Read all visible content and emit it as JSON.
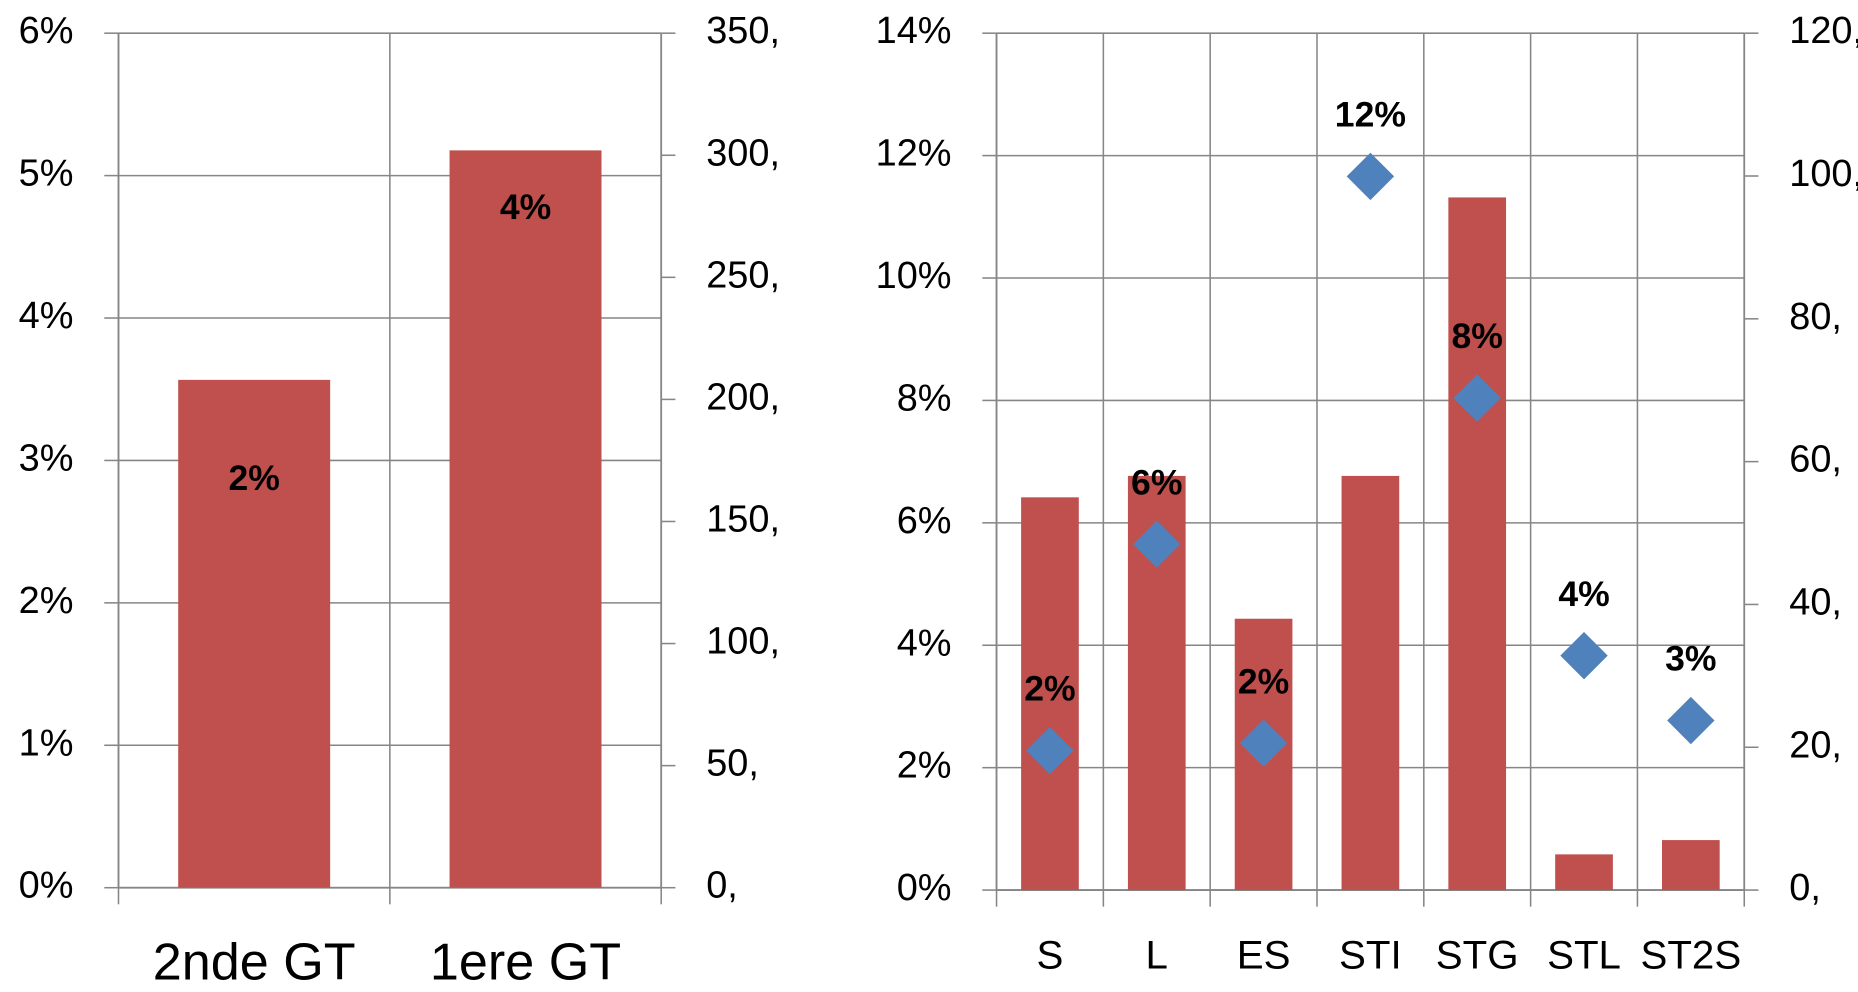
{
  "chart_data": [
    {
      "type": "bar",
      "categories": [
        "2nde GT",
        "1ere GT"
      ],
      "series": [
        {
          "color": "#c0504d",
          "axis": "y2",
          "values": [
            208,
            302
          ]
        },
        {
          "color": "none",
          "marker": "none",
          "values": [
            2,
            4
          ],
          "value_labels": [
            "2%",
            "4%"
          ]
        }
      ],
      "ylim": [
        0,
        6
      ],
      "yticks": [
        {
          "value": 0,
          "label": "0%"
        },
        {
          "value": 1,
          "label": "1%"
        },
        {
          "value": 2,
          "label": "2%"
        },
        {
          "value": 3,
          "label": "3%"
        },
        {
          "value": 4,
          "label": "4%"
        },
        {
          "value": 5,
          "label": "5%"
        },
        {
          "value": 6,
          "label": "6%"
        }
      ],
      "y2lim": [
        0,
        350
      ],
      "y2ticks": [
        {
          "value": 0,
          "label": "0,"
        },
        {
          "value": 50,
          "label": "50,"
        },
        {
          "value": 100,
          "label": "100,"
        },
        {
          "value": 150,
          "label": "150,"
        },
        {
          "value": 200,
          "label": "200,"
        },
        {
          "value": 250,
          "label": "250,"
        },
        {
          "value": 300,
          "label": "300,"
        },
        {
          "value": 350,
          "label": "350,"
        }
      ],
      "grid": true
    },
    {
      "type": "bar",
      "categories": [
        "S",
        "L",
        "ES",
        "STI",
        "STG",
        "STL",
        "ST2S"
      ],
      "series": [
        {
          "color": "#c0504d",
          "axis": "y2",
          "values": [
            55,
            58,
            38,
            58,
            97,
            5,
            7
          ]
        },
        {
          "color": "#4f81bd",
          "marker": "diamond",
          "values": [
            2.28,
            5.65,
            2.4,
            11.66,
            8.04,
            3.83,
            2.77
          ],
          "value_labels": [
            "2%",
            "6%",
            "2%",
            "12%",
            "8%",
            "4%",
            "3%"
          ]
        }
      ],
      "ylim": [
        0,
        14
      ],
      "yticks": [
        {
          "value": 0,
          "label": "0%"
        },
        {
          "value": 2,
          "label": "2%"
        },
        {
          "value": 4,
          "label": "4%"
        },
        {
          "value": 6,
          "label": "6%"
        },
        {
          "value": 8,
          "label": "8%"
        },
        {
          "value": 10,
          "label": "10%"
        },
        {
          "value": 12,
          "label": "12%"
        },
        {
          "value": 14,
          "label": "14%"
        }
      ],
      "y2lim": [
        0,
        120
      ],
      "y2ticks": [
        {
          "value": 0,
          "label": "0,"
        },
        {
          "value": 20,
          "label": "20,"
        },
        {
          "value": 40,
          "label": "40,"
        },
        {
          "value": 60,
          "label": "60,"
        },
        {
          "value": 80,
          "label": "80,"
        },
        {
          "value": 100,
          "label": "100,"
        },
        {
          "value": 120,
          "label": "120,"
        }
      ],
      "grid": true
    }
  ]
}
